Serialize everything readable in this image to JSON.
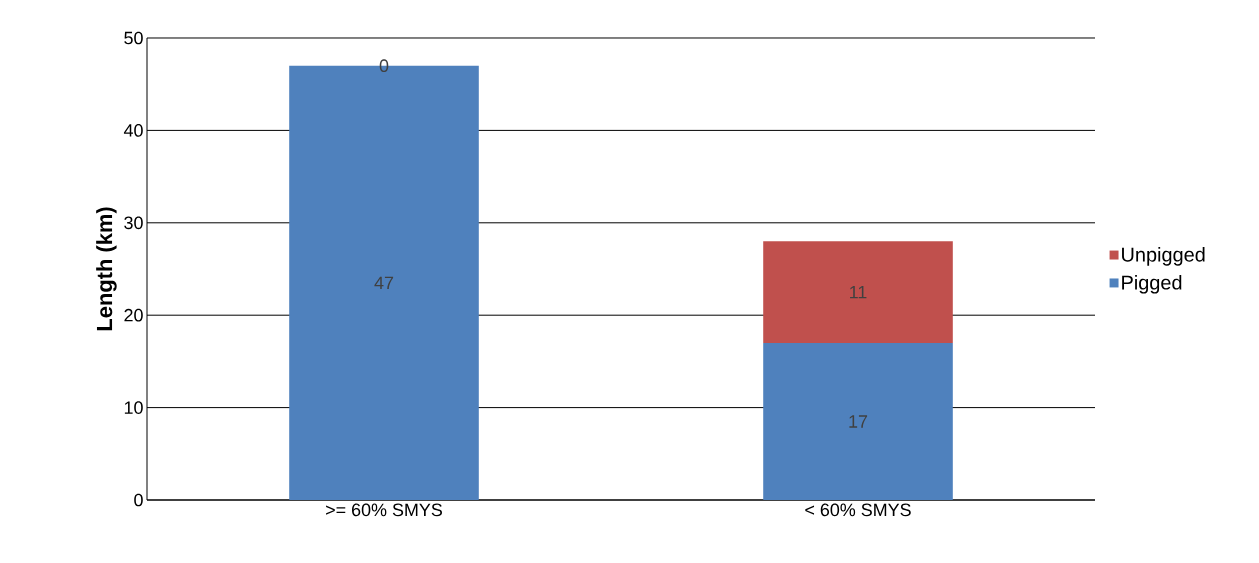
{
  "chart_data": {
    "type": "bar",
    "stacked": true,
    "ylabel": "Length (km)",
    "categories": [
      ">= 60% SMYS",
      "< 60% SMYS"
    ],
    "series": [
      {
        "name": "Pigged",
        "color": "#4f81bd",
        "values": [
          47,
          17
        ]
      },
      {
        "name": "Unpigged",
        "color": "#c0504d",
        "values": [
          0,
          11
        ]
      }
    ],
    "ylim": [
      0,
      50
    ],
    "yticks": [
      0,
      10,
      20,
      30,
      40,
      50
    ],
    "grid": "y",
    "legend": "right",
    "data_labels": true
  }
}
